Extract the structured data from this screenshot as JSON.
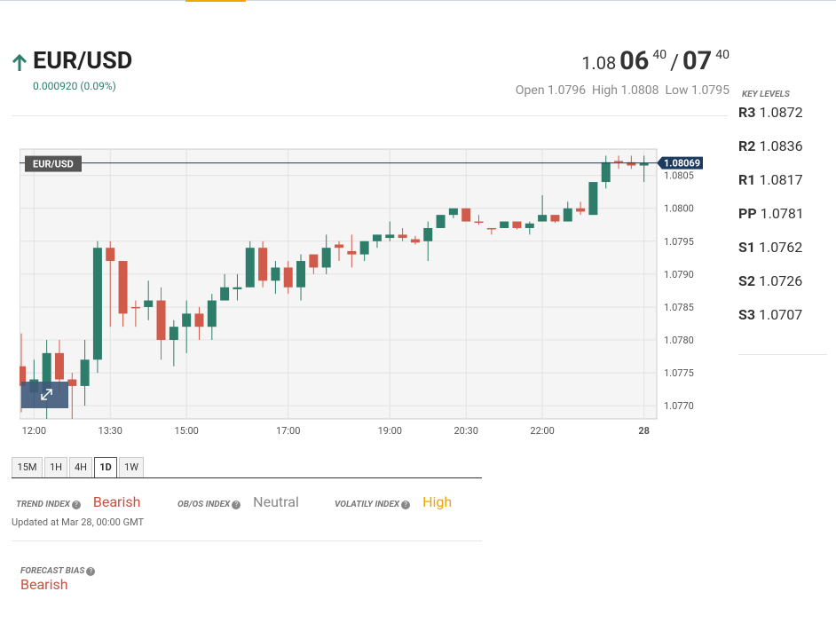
{
  "header": {
    "symbol": "EUR/USD",
    "change": "0.000920 (0.09%)"
  },
  "quote": {
    "bid_big": "1.08",
    "bid_pips": "06",
    "bid_frac": "40",
    "separator": "/",
    "ask_pips": "07",
    "ask_frac": "40",
    "open": "Open 1.0796",
    "high": "High 1.0808",
    "low": "Low 1.0795"
  },
  "key_levels": {
    "title": "KEY LEVELS",
    "levels": [
      {
        "label": "R3",
        "value": "1.0872"
      },
      {
        "label": "R2",
        "value": "1.0836"
      },
      {
        "label": "R1",
        "value": "1.0817"
      },
      {
        "label": "PP",
        "value": "1.0781"
      },
      {
        "label": "S1",
        "value": "1.0762"
      },
      {
        "label": "S2",
        "value": "1.0726"
      },
      {
        "label": "S3",
        "value": "1.0707"
      }
    ]
  },
  "chart_data": {
    "type": "candlestick",
    "legend": "EUR/USD",
    "up_color": "#2e7d6b",
    "down_color": "#d05b4a",
    "last_price": 1.08069,
    "open": [
      1.0776,
      1.0772,
      1.0772,
      1.0778,
      1.0774,
      1.0773,
      1.0777,
      1.0794,
      1.0792,
      1.0785,
      1.0785,
      1.0786,
      1.078,
      1.0782,
      1.0784,
      1.0782,
      1.0786,
      1.07877,
      1.0788,
      1.0794,
      1.0789,
      1.0791,
      1.0788,
      1.0793,
      1.0791,
      1.07945,
      1.07935,
      1.0793,
      1.0795,
      1.07955,
      1.0796,
      1.07953,
      1.0795,
      1.0797,
      1.0799,
      1.08,
      1.0798,
      1.0797,
      1.0797,
      1.0798,
      1.0797,
      1.0798,
      1.0799,
      1.0798,
      1.08,
      1.0799,
      1.0804,
      1.08072,
      1.0807,
      1.08065
    ],
    "high": [
      1.0781,
      1.0777,
      1.078,
      1.078,
      1.0775,
      1.078,
      1.0795,
      1.0795,
      1.0792,
      1.0786,
      1.0789,
      1.0788,
      1.0783,
      1.0786,
      1.0785,
      1.0787,
      1.079,
      1.079,
      1.0795,
      1.0795,
      1.0792,
      1.0792,
      1.0793,
      1.0793,
      1.0796,
      1.0795,
      1.0796,
      1.0795,
      1.0796,
      1.0798,
      1.0797,
      1.07958,
      1.0798,
      1.0799,
      1.08,
      1.08,
      1.0799,
      1.0797,
      1.0798,
      1.0798,
      1.0798,
      1.0802,
      1.0799,
      1.0801,
      1.0801,
      1.0804,
      1.0808,
      1.0808,
      1.0808,
      1.0808
    ],
    "low": [
      1.0769,
      1.077,
      1.0768,
      1.0772,
      1.0768,
      1.077,
      1.0775,
      1.0782,
      1.0782,
      1.0782,
      1.0783,
      1.0777,
      1.0776,
      1.0778,
      1.078,
      1.078,
      1.0786,
      1.0786,
      1.0788,
      1.0788,
      1.0787,
      1.0787,
      1.0786,
      1.079,
      1.079,
      1.0792,
      1.0791,
      1.0792,
      1.0794,
      1.0795,
      1.0795,
      1.07945,
      1.0792,
      1.0797,
      1.07985,
      1.0798,
      1.07975,
      1.0796,
      1.0797,
      1.07968,
      1.0796,
      1.0798,
      1.07978,
      1.0798,
      1.0799,
      1.0799,
      1.0803,
      1.0806,
      1.0806,
      1.0804
    ],
    "close": [
      1.0773,
      1.0774,
      1.0778,
      1.0774,
      1.0773,
      1.0777,
      1.0794,
      1.0792,
      1.0784,
      1.07848,
      1.0786,
      1.078,
      1.0782,
      1.0784,
      1.0782,
      1.0786,
      1.0788,
      1.0788,
      1.0794,
      1.0789,
      1.0791,
      1.0788,
      1.0792,
      1.0791,
      1.0794,
      1.0794,
      1.0793,
      1.0795,
      1.0796,
      1.0796,
      1.07955,
      1.07948,
      1.0797,
      1.0799,
      1.08,
      1.0798,
      1.07978,
      1.07968,
      1.0798,
      1.0797,
      1.07977,
      1.0799,
      1.0798,
      1.08,
      1.07995,
      1.0804,
      1.0807,
      1.0807,
      1.08065,
      1.08069
    ],
    "xlim": [
      0,
      50
    ],
    "xticks": [
      {
        "value": 1,
        "label": "12:00"
      },
      {
        "value": 7,
        "label": "13:30"
      },
      {
        "value": 13,
        "label": "15:00"
      },
      {
        "value": 21,
        "label": "17:00"
      },
      {
        "value": 29,
        "label": "19:00"
      },
      {
        "value": 35,
        "label": "20:30"
      },
      {
        "value": 41,
        "label": "22:00"
      },
      {
        "value": 49,
        "label": "28"
      }
    ],
    "ylim": [
      1.0768,
      1.0809
    ],
    "yticks": [
      {
        "value": 1.077,
        "label": "1.0770"
      },
      1.0775,
      {
        "value": 1.078,
        "label": "1.0780"
      },
      1.0785,
      {
        "value": 1.079,
        "label": "1.0790"
      },
      1.0795,
      {
        "value": 1.08,
        "label": "1.0800"
      },
      1.0805
    ],
    "grid": true
  },
  "timeframes": {
    "options": [
      "15M",
      "1H",
      "4H",
      "1D",
      "1W"
    ],
    "active": "1D"
  },
  "indices": {
    "trend": {
      "label": "TREND INDEX",
      "value": "Bearish"
    },
    "obos": {
      "label": "OB/OS INDEX",
      "value": "Neutral"
    },
    "volatility": {
      "label": "VOLATILY INDEX",
      "value": "High"
    },
    "updated": "Updated at Mar 28, 00:00 GMT"
  },
  "forecast": {
    "label": "FORECAST BIAS",
    "value": "Bearish"
  }
}
